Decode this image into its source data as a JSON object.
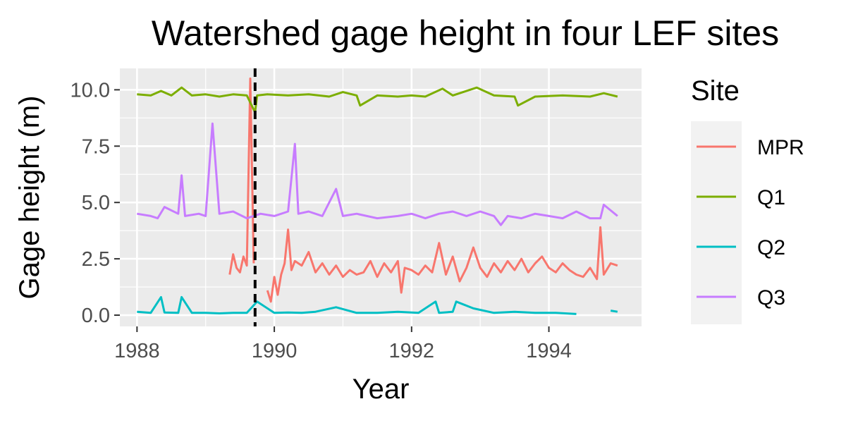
{
  "chart_data": {
    "type": "line",
    "title": "Watershed gage height in four LEF sites",
    "xlabel": "Year",
    "ylabel": "Gage height (m)",
    "xlim": [
      1987.75,
      1995.35
    ],
    "ylim": [
      -0.5,
      10.95
    ],
    "x_ticks": [
      1988,
      1990,
      1992,
      1994
    ],
    "y_ticks": [
      0.0,
      2.5,
      5.0,
      7.5,
      10.0
    ],
    "y_tick_labels": [
      "0.0",
      "2.5",
      "5.0",
      "7.5",
      "10.0"
    ],
    "grid": true,
    "vline": {
      "x": 1989.72,
      "style": "dashed",
      "color": "#000000"
    },
    "legend": {
      "title": "Site",
      "position": "right"
    },
    "series": [
      {
        "name": "MPR",
        "color": "#F8766D",
        "x": [
          1989.35,
          1989.4,
          1989.45,
          1989.5,
          1989.55,
          1989.6,
          1989.65,
          1989.7,
          null,
          1989.9,
          1989.95,
          1990.0,
          1990.05,
          1990.1,
          1990.15,
          1990.2,
          1990.25,
          1990.3,
          1990.4,
          1990.5,
          1990.6,
          1990.7,
          1990.8,
          1990.9,
          1991.0,
          1991.1,
          1991.2,
          1991.3,
          1991.4,
          1991.5,
          1991.6,
          1991.7,
          1991.8,
          1991.85,
          1991.9,
          1992.0,
          1992.1,
          1992.2,
          1992.3,
          1992.4,
          1992.5,
          1992.6,
          1992.7,
          1992.8,
          1992.9,
          1993.0,
          1993.1,
          1993.2,
          1993.3,
          1993.4,
          1993.5,
          1993.6,
          1993.7,
          1993.8,
          1993.9,
          1994.0,
          1994.1,
          1994.2,
          1994.3,
          1994.4,
          1994.5,
          1994.6,
          1994.7,
          1994.75,
          1994.8,
          1994.9,
          1995.0
        ],
        "values": [
          1.8,
          2.7,
          2.1,
          1.9,
          2.6,
          2.2,
          10.5,
          2.3,
          null,
          1.1,
          0.6,
          1.7,
          0.9,
          1.8,
          2.3,
          3.8,
          2.0,
          2.4,
          2.2,
          2.8,
          1.9,
          2.3,
          1.8,
          2.2,
          1.7,
          2.0,
          1.8,
          1.9,
          2.4,
          1.7,
          2.3,
          1.9,
          2.4,
          1.0,
          2.1,
          2.0,
          1.8,
          2.2,
          1.9,
          3.2,
          1.8,
          2.6,
          1.5,
          2.1,
          3.0,
          2.1,
          1.7,
          2.3,
          1.9,
          2.4,
          2.0,
          2.5,
          1.9,
          2.3,
          2.6,
          2.1,
          1.9,
          2.3,
          2.0,
          1.8,
          1.7,
          2.1,
          1.6,
          3.9,
          1.8,
          2.3,
          2.2
        ]
      },
      {
        "name": "Q1",
        "color": "#7CAE00",
        "x": [
          1988.0,
          1988.2,
          1988.35,
          1988.5,
          1988.65,
          1988.8,
          1989.0,
          1989.2,
          1989.4,
          1989.6,
          1989.72,
          1989.75,
          1989.9,
          1990.2,
          1990.5,
          1990.8,
          1991.0,
          1991.2,
          1991.25,
          1991.5,
          1991.8,
          1992.0,
          1992.2,
          1992.45,
          1992.6,
          1992.95,
          1993.2,
          1993.5,
          1993.55,
          1993.8,
          1994.2,
          1994.6,
          1994.8,
          1995.0
        ],
        "values": [
          9.8,
          9.75,
          9.95,
          9.75,
          10.1,
          9.75,
          9.8,
          9.7,
          9.8,
          9.75,
          9.0,
          9.75,
          9.8,
          9.75,
          9.8,
          9.7,
          9.9,
          9.75,
          9.3,
          9.75,
          9.7,
          9.75,
          9.7,
          10.05,
          9.75,
          10.1,
          9.75,
          9.7,
          9.3,
          9.7,
          9.75,
          9.7,
          9.85,
          9.7
        ]
      },
      {
        "name": "Q2",
        "color": "#00BFC4",
        "x": [
          1988.0,
          1988.2,
          1988.35,
          1988.4,
          1988.6,
          1988.65,
          1988.8,
          1989.0,
          1989.2,
          1989.4,
          1989.6,
          1989.75,
          1989.8,
          1990.0,
          1990.2,
          1990.4,
          1990.6,
          1990.9,
          1991.2,
          1991.5,
          1991.8,
          1992.1,
          1992.35,
          1992.4,
          1992.6,
          1992.65,
          1992.9,
          1993.2,
          1993.5,
          1993.8,
          1994.1,
          1994.4,
          null,
          1994.9,
          1995.0
        ],
        "values": [
          0.15,
          0.1,
          0.8,
          0.12,
          0.1,
          0.8,
          0.1,
          0.1,
          0.08,
          0.1,
          0.1,
          0.6,
          0.5,
          0.1,
          0.12,
          0.1,
          0.15,
          0.35,
          0.1,
          0.1,
          0.15,
          0.1,
          0.6,
          0.1,
          0.15,
          0.6,
          0.3,
          0.1,
          0.15,
          0.1,
          0.1,
          0.05,
          null,
          0.2,
          0.15
        ]
      },
      {
        "name": "Q3",
        "color": "#C77CFF",
        "x": [
          1988.0,
          1988.2,
          1988.3,
          1988.4,
          1988.6,
          1988.65,
          1988.7,
          1988.9,
          1989.0,
          1989.1,
          1989.2,
          1989.4,
          1989.6,
          1989.8,
          1990.0,
          1990.2,
          1990.3,
          1990.35,
          1990.5,
          1990.7,
          1990.9,
          1991.0,
          1991.2,
          1991.5,
          1991.8,
          1992.0,
          1992.2,
          1992.4,
          1992.6,
          1992.8,
          1993.0,
          1993.2,
          1993.3,
          1993.4,
          1993.6,
          1993.8,
          1994.0,
          1994.2,
          1994.4,
          1994.6,
          1994.75,
          1994.8,
          1995.0
        ],
        "values": [
          4.5,
          4.4,
          4.3,
          4.8,
          4.5,
          6.2,
          4.4,
          4.5,
          4.4,
          8.5,
          4.5,
          4.6,
          4.3,
          4.5,
          4.4,
          4.6,
          7.6,
          4.5,
          4.6,
          4.4,
          5.6,
          4.4,
          4.5,
          4.3,
          4.4,
          4.5,
          4.3,
          4.5,
          4.6,
          4.4,
          4.6,
          4.4,
          4.0,
          4.4,
          4.3,
          4.5,
          4.4,
          4.3,
          4.6,
          4.3,
          4.3,
          4.9,
          4.4
        ]
      }
    ]
  }
}
